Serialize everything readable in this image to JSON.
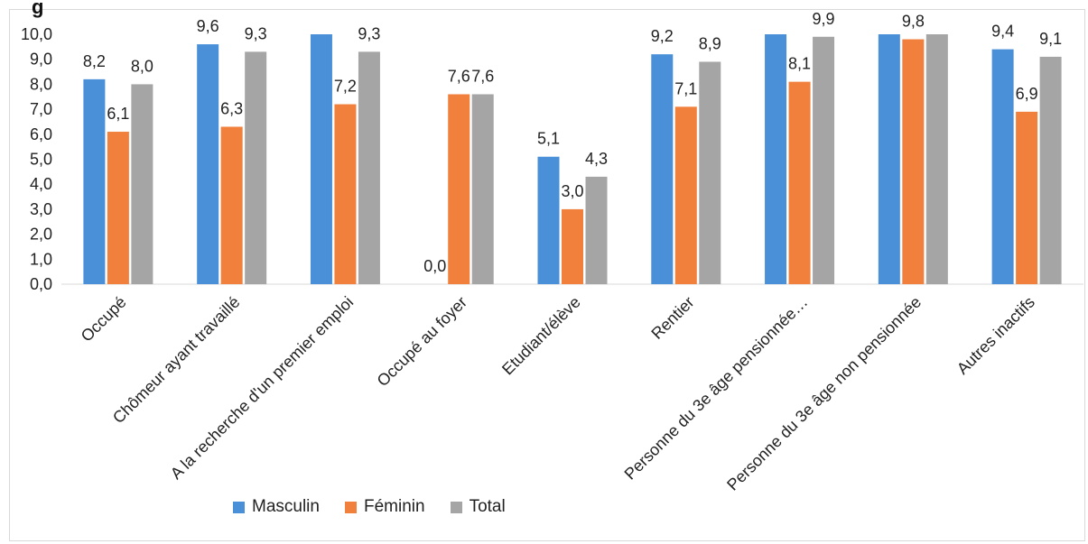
{
  "chart_data": {
    "type": "bar",
    "title_fragment": "g",
    "categories": [
      "Occupé",
      "Chômeur ayant travaillé",
      "A la recherche d'un premier emploi",
      "Occupé au foyer",
      "Etudiant/élève",
      "Rentier",
      "Personne du 3e âge pensionnée…",
      "Personne du 3e âge non pensionnée",
      "Autres inactifs"
    ],
    "series": [
      {
        "name": "Masculin",
        "color": "#4a90d9",
        "values": [
          8.2,
          9.6,
          10.0,
          0.0,
          5.1,
          9.2,
          10.0,
          10.0,
          9.4
        ],
        "labels": [
          "8,2",
          "9,6",
          "",
          "0,0",
          "5,1",
          "9,2",
          "",
          "",
          "9,4"
        ]
      },
      {
        "name": "Féminin",
        "color": "#f0803c",
        "values": [
          6.1,
          6.3,
          7.2,
          7.6,
          3.0,
          7.1,
          8.1,
          9.8,
          6.9
        ],
        "labels": [
          "6,1",
          "6,3",
          "7,2",
          "7,6",
          "3,0",
          "7,1",
          "8,1",
          "9,8",
          "6,9"
        ]
      },
      {
        "name": "Total",
        "color": "#a5a5a5",
        "values": [
          8.0,
          9.3,
          9.3,
          7.6,
          4.3,
          8.9,
          9.9,
          10.0,
          9.1
        ],
        "labels": [
          "8,0",
          "9,3",
          "9,3",
          "7,6",
          "4,3",
          "8,9",
          "9,9",
          "",
          "9,1"
        ]
      }
    ],
    "yticks": [
      "0,0",
      "1,0",
      "2,0",
      "3,0",
      "4,0",
      "5,0",
      "6,0",
      "7,0",
      "8,0",
      "9,0",
      "10,0"
    ],
    "ylim": [
      0,
      10
    ],
    "grid": false,
    "legend_position": "bottom"
  }
}
